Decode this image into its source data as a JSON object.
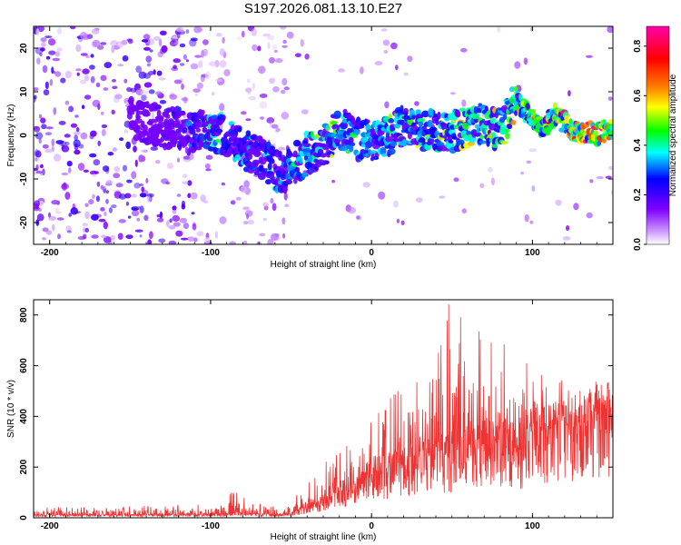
{
  "title": "S197.2026.081.13.10.E27",
  "chart_data": [
    {
      "type": "heatmap",
      "name": "spectrogram",
      "xlabel": "Height of straight line (km)",
      "ylabel": "Frequency (Hz)",
      "xlim": [
        -210,
        150
      ],
      "ylim": [
        -25,
        25
      ],
      "x_ticks": [
        -200,
        -100,
        0,
        100
      ],
      "x_tick_labels": [
        "-200",
        "-100",
        "0",
        "100"
      ],
      "y_ticks": [
        -20,
        -10,
        0,
        10,
        20
      ],
      "y_tick_labels": [
        "-20",
        "-10",
        "0",
        "10",
        "20"
      ],
      "colorbar": {
        "label": "Normalized spectral amplitude",
        "range": [
          0.0,
          0.88
        ],
        "ticks": [
          0.0,
          0.2,
          0.4,
          0.6,
          0.8
        ],
        "tick_labels": [
          "0.0",
          "0.2",
          "0.4",
          "0.6",
          "0.8"
        ],
        "colors": [
          "#ffffff",
          "#cc99ff",
          "#8000ff",
          "#0000ff",
          "#00ffff",
          "#00ff00",
          "#ffff00",
          "#ff8000",
          "#ff0000",
          "#ff00aa"
        ]
      },
      "ridge": {
        "description": "dominant frequency track vs height",
        "x": [
          -150,
          -130,
          -110,
          -100,
          -90,
          -80,
          -70,
          -60,
          -55,
          -50,
          -45,
          -40,
          -30,
          -20,
          -10,
          0,
          10,
          20,
          30,
          40,
          50,
          60,
          70,
          80,
          90,
          95,
          100,
          105,
          110,
          115,
          120,
          125,
          130,
          135,
          140,
          145,
          150
        ],
        "freq": [
          4,
          2,
          1,
          1,
          0,
          -3,
          -5,
          -8,
          -9,
          -7,
          -6,
          -4,
          -3,
          2,
          -1,
          -1,
          0,
          2,
          1,
          1,
          1,
          2,
          3,
          1,
          8,
          6,
          4,
          2,
          3,
          5,
          3,
          1,
          0,
          1,
          0,
          1,
          1
        ],
        "amplitude": [
          0.15,
          0.2,
          0.3,
          0.45,
          0.35,
          0.35,
          0.3,
          0.35,
          0.35,
          0.4,
          0.4,
          0.45,
          0.45,
          0.5,
          0.4,
          0.45,
          0.45,
          0.45,
          0.5,
          0.45,
          0.5,
          0.55,
          0.5,
          0.55,
          0.6,
          0.55,
          0.65,
          0.6,
          0.65,
          0.65,
          0.75,
          0.8,
          0.8,
          0.85,
          0.85,
          0.88,
          0.8
        ]
      }
    },
    {
      "type": "line",
      "name": "snr",
      "xlabel": "Height of straight line (km)",
      "ylabel": "SNR (10 * v/v)",
      "xlim": [
        -210,
        150
      ],
      "ylim": [
        0,
        860
      ],
      "x_ticks": [
        -200,
        -100,
        0,
        100
      ],
      "x_tick_labels": [
        "-200",
        "-100",
        "0",
        "100"
      ],
      "y_ticks": [
        0,
        200,
        400,
        600,
        800
      ],
      "y_tick_labels": [
        "0",
        "200",
        "400",
        "600",
        "800"
      ],
      "color": "#ee3333",
      "envelope": {
        "x": [
          -210,
          -150,
          -100,
          -90,
          -85,
          -80,
          -70,
          -60,
          -50,
          -40,
          -30,
          -20,
          -10,
          0,
          10,
          20,
          30,
          40,
          50,
          60,
          70,
          80,
          90,
          100,
          110,
          120,
          130,
          140,
          150
        ],
        "baseline": [
          10,
          10,
          12,
          15,
          20,
          15,
          12,
          12,
          15,
          40,
          60,
          90,
          120,
          150,
          170,
          200,
          230,
          240,
          250,
          260,
          280,
          280,
          270,
          300,
          320,
          340,
          360,
          380,
          400
        ],
        "peak": [
          40,
          45,
          55,
          90,
          110,
          80,
          60,
          50,
          70,
          140,
          220,
          280,
          330,
          380,
          460,
          560,
          700,
          850,
          860,
          800,
          780,
          720,
          650,
          600,
          560,
          540,
          520,
          540,
          560
        ]
      }
    }
  ]
}
